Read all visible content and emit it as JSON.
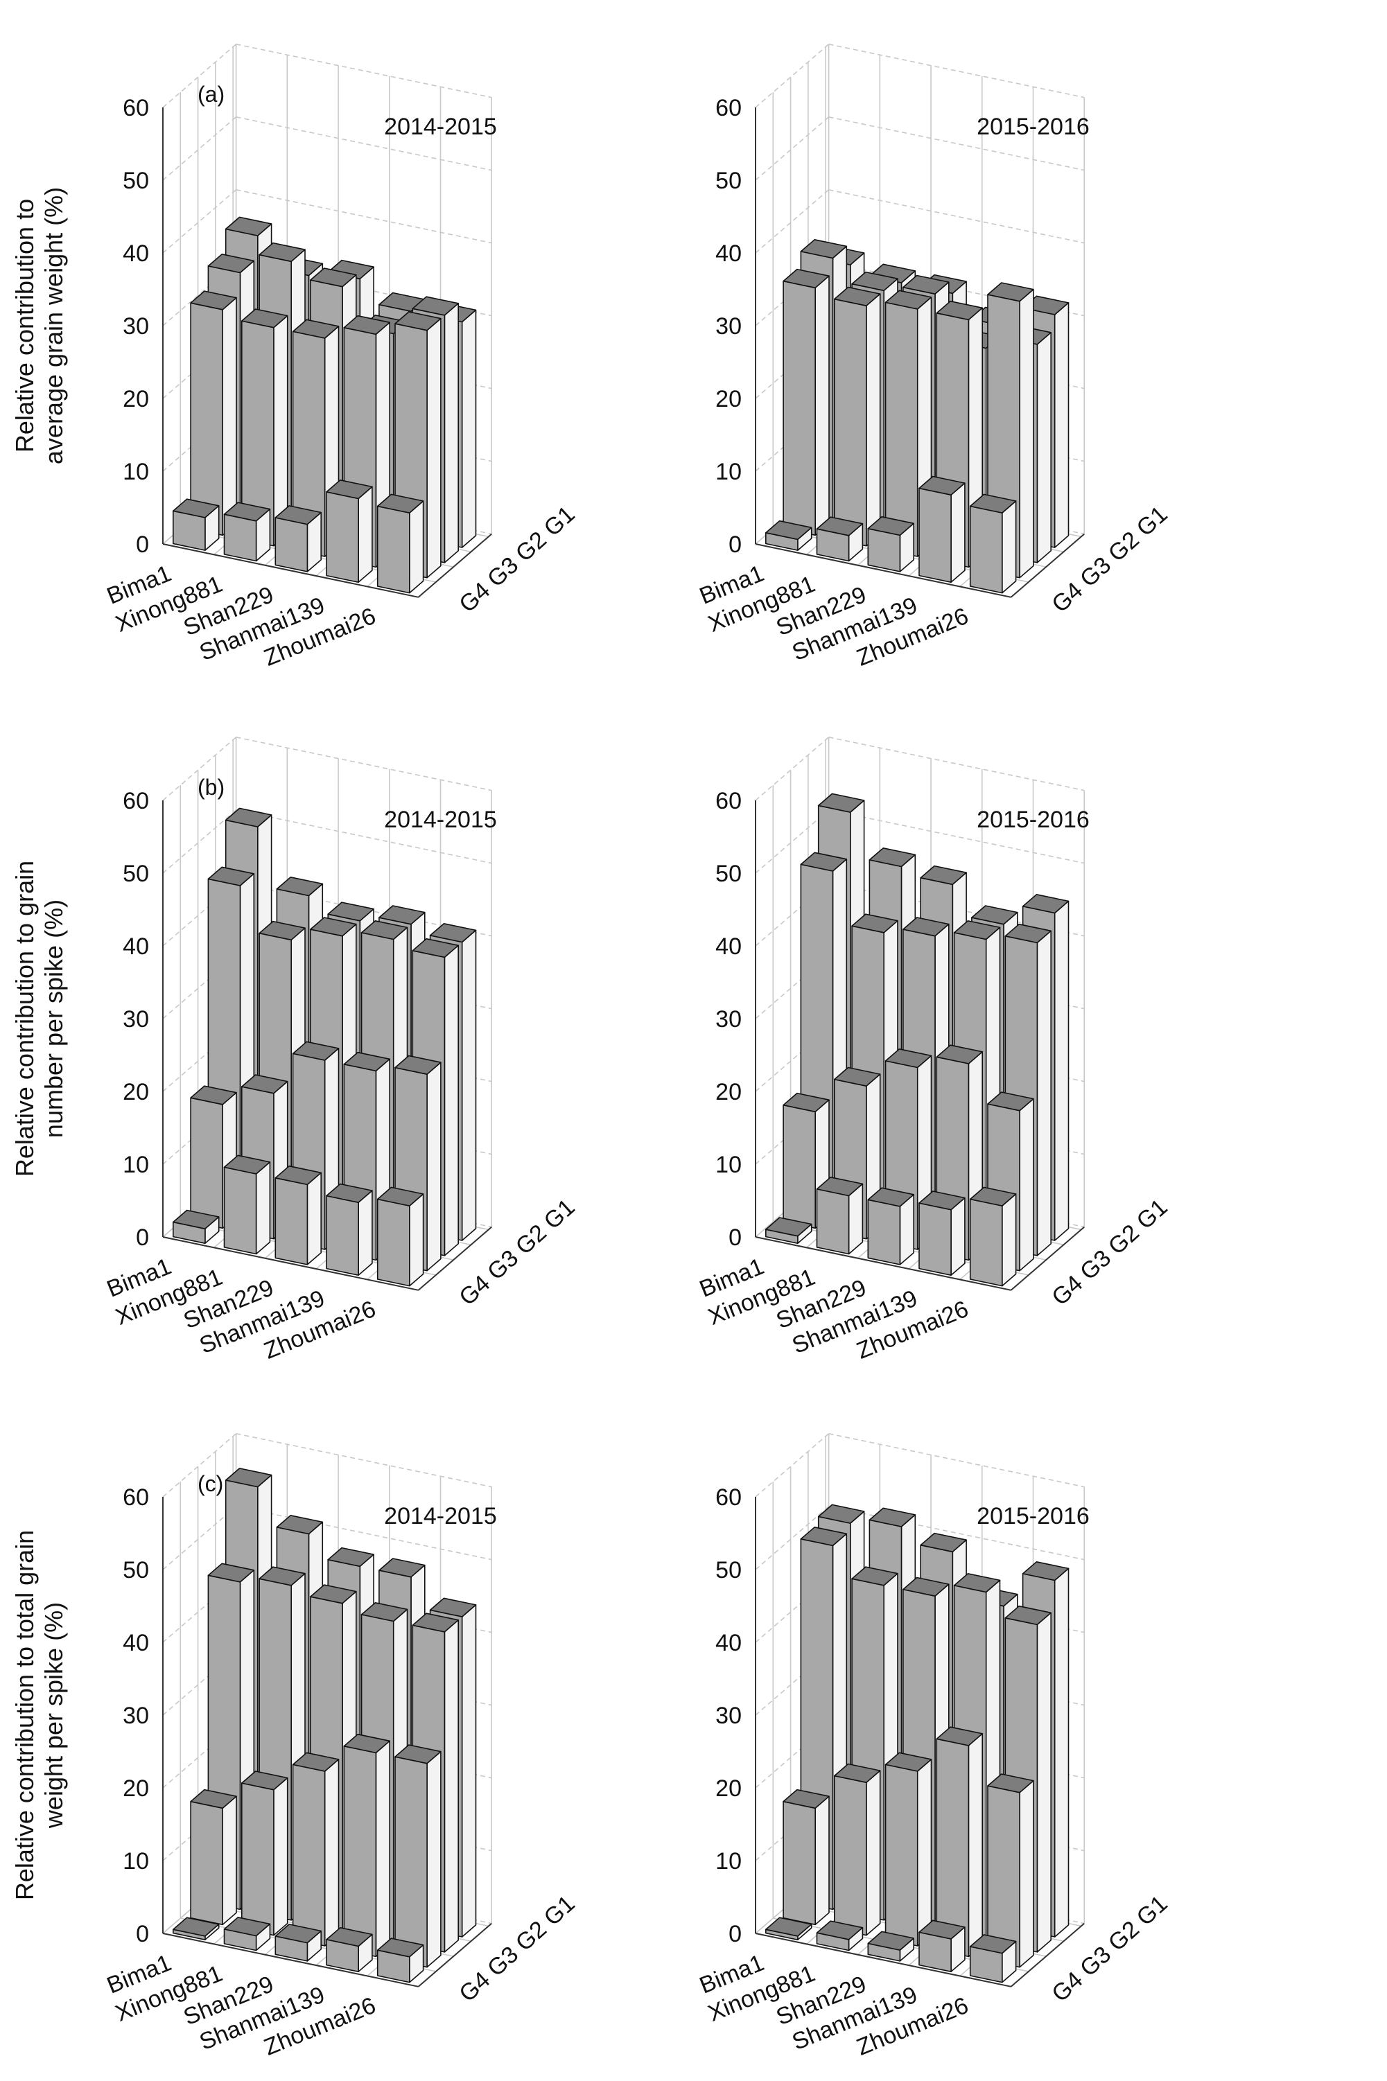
{
  "figure": {
    "colors": {
      "front": "#a8a8a8",
      "side": "#f3f3f3",
      "top": "#7d7d7d",
      "edge": "#111111",
      "grid": "#c8c8c8"
    }
  },
  "chart_data": [
    {
      "type": "bar",
      "panel_label": "(a)",
      "year": "2014-2015",
      "ylabel": [
        "Relative contribution to",
        "average grain weight (%)"
      ],
      "categories": [
        "Bima1",
        "Xinong881",
        "Shan229",
        "Shanmai139",
        "Zhoumai26"
      ],
      "depth_categories": [
        "G4",
        "G3",
        "G2",
        "G1"
      ],
      "depth_label": "G4 G3 G2 G1",
      "ylim": [
        0,
        60
      ],
      "yticks": [
        "0",
        "10",
        "20",
        "30",
        "40",
        "50",
        "60"
      ],
      "series": [
        {
          "name": "G4",
          "values": [
            4.5,
            5.5,
            6.5,
            11.5,
            11
          ]
        },
        {
          "name": "G3",
          "values": [
            31,
            30,
            30,
            32,
            34
          ]
        },
        {
          "name": "G2",
          "values": [
            34,
            37,
            35,
            30,
            34
          ]
        },
        {
          "name": "G1",
          "values": [
            37,
            33,
            34,
            31,
            31
          ]
        }
      ]
    },
    {
      "type": "bar",
      "panel_label": "",
      "year": "2015-2016",
      "ylabel": [
        "",
        ""
      ],
      "categories": [
        "Bima1",
        "Xinong881",
        "Shan229",
        "Shanmai139",
        "Zhoumai26"
      ],
      "depth_categories": [
        "G4",
        "G3",
        "G2",
        "G1"
      ],
      "depth_label": "G4 G3 G2 G1",
      "ylim": [
        0,
        60
      ],
      "yticks": [
        "0",
        "10",
        "20",
        "30",
        "40",
        "50",
        "60"
      ],
      "series": [
        {
          "name": "G4",
          "values": [
            1.5,
            3.5,
            5,
            12,
            11
          ]
        },
        {
          "name": "G3",
          "values": [
            34,
            33,
            34,
            34,
            38
          ]
        },
        {
          "name": "G2",
          "values": [
            36,
            33,
            34,
            28,
            30
          ]
        },
        {
          "name": "G1",
          "values": [
            33,
            32,
            32,
            29,
            32
          ]
        }
      ]
    },
    {
      "type": "bar",
      "panel_label": "(b)",
      "year": "2014-2015",
      "ylabel": [
        "Relative contribution to grain",
        "number per spike (%)"
      ],
      "categories": [
        "Bima1",
        "Xinong881",
        "Shan229",
        "Shanmai139",
        "Zhoumai26"
      ],
      "depth_categories": [
        "G4",
        "G3",
        "G2",
        "G1"
      ],
      "depth_label": "G4 G3 G2 G1",
      "ylim": [
        0,
        60
      ],
      "yticks": [
        "0",
        "10",
        "20",
        "30",
        "40",
        "50",
        "60"
      ],
      "series": [
        {
          "name": "G4",
          "values": [
            2,
            11,
            11,
            10,
            11
          ]
        },
        {
          "name": "G3",
          "values": [
            17,
            20,
            26,
            26,
            27
          ]
        },
        {
          "name": "G2",
          "values": [
            45,
            39,
            41,
            42,
            41
          ]
        },
        {
          "name": "G1",
          "values": [
            51,
            43,
            41,
            42,
            41
          ]
        }
      ]
    },
    {
      "type": "bar",
      "panel_label": "",
      "year": "2015-2016",
      "ylabel": [
        "",
        ""
      ],
      "categories": [
        "Bima1",
        "Xinong881",
        "Shan229",
        "Shanmai139",
        "Zhoumai26"
      ],
      "depth_categories": [
        "G4",
        "G3",
        "G2",
        "G1"
      ],
      "depth_label": "G4 G3 G2 G1",
      "ylim": [
        0,
        60
      ],
      "yticks": [
        "0",
        "10",
        "20",
        "30",
        "40",
        "50",
        "60"
      ],
      "series": [
        {
          "name": "G4",
          "values": [
            1,
            8,
            8,
            9,
            11
          ]
        },
        {
          "name": "G3",
          "values": [
            16,
            21,
            25,
            27,
            22
          ]
        },
        {
          "name": "G2",
          "values": [
            47,
            40,
            41,
            42,
            43
          ]
        },
        {
          "name": "G1",
          "values": [
            53,
            47,
            46,
            42,
            45
          ]
        }
      ]
    },
    {
      "type": "bar",
      "panel_label": "(c)",
      "year": "2014-2015",
      "ylabel": [
        "Relative contribution to total grain",
        "weight per spike (%)"
      ],
      "categories": [
        "Bima1",
        "Xinong881",
        "Shan229",
        "Shanmai139",
        "Zhoumai26"
      ],
      "depth_categories": [
        "G4",
        "G3",
        "G2",
        "G1"
      ],
      "depth_label": "G4 G3 G2 G1",
      "ylim": [
        0,
        60
      ],
      "yticks": [
        "0",
        "10",
        "20",
        "30",
        "40",
        "50",
        "60"
      ],
      "series": [
        {
          "name": "G4",
          "values": [
            0.5,
            2,
            2.5,
            3.5,
            3.5
          ]
        },
        {
          "name": "G3",
          "values": [
            16,
            20,
            24,
            28,
            28
          ]
        },
        {
          "name": "G2",
          "values": [
            45,
            46,
            45,
            44,
            44
          ]
        },
        {
          "name": "G1",
          "values": [
            56,
            51,
            48,
            48,
            44
          ]
        }
      ]
    },
    {
      "type": "bar",
      "panel_label": "",
      "year": "2015-2016",
      "ylabel": [
        "",
        ""
      ],
      "categories": [
        "Bima1",
        "Xinong881",
        "Shan229",
        "Shanmai139",
        "Zhoumai26"
      ],
      "depth_categories": [
        "G4",
        "G3",
        "G2",
        "G1"
      ],
      "depth_label": "G4 G3 G2 G1",
      "ylim": [
        0,
        60
      ],
      "yticks": [
        "0",
        "10",
        "20",
        "30",
        "40",
        "50",
        "60"
      ],
      "series": [
        {
          "name": "G4",
          "values": [
            0.5,
            1.5,
            1.5,
            4.5,
            4
          ]
        },
        {
          "name": "G3",
          "values": [
            16,
            21,
            24,
            29,
            24
          ]
        },
        {
          "name": "G2",
          "values": [
            50,
            46,
            46,
            48,
            45
          ]
        },
        {
          "name": "G1",
          "values": [
            51,
            52,
            50,
            44,
            49
          ]
        }
      ]
    }
  ]
}
